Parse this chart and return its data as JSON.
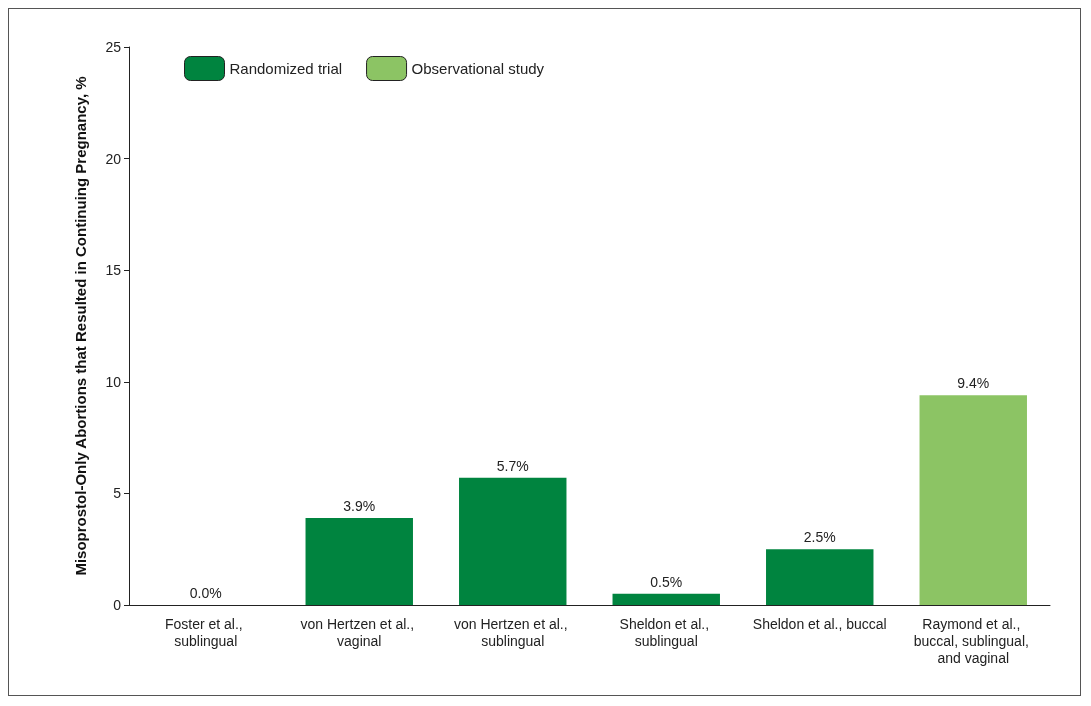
{
  "chart_data": {
    "type": "bar",
    "ylabel": "Misoprostol-Only Abortions that Resulted in Continuing Pregnancy, %",
    "categories": [
      "Foster et al., sublingual",
      "von Hertzen et al., vaginal",
      "von Hertzen et al., sublingual",
      "Sheldon et al., sublingual",
      "Sheldon et al., buccal",
      "Raymond et al., buccal, sublingual, and vaginal"
    ],
    "stacked": true,
    "series": [
      {
        "name": "Randomized trial",
        "color": "#00843f",
        "values": [
          0.0,
          3.9,
          5.7,
          0.5,
          2.5,
          null
        ],
        "value_labels": [
          "0.0%",
          "3.9%",
          "5.7%",
          "0.5%",
          "2.5%",
          null
        ]
      },
      {
        "name": "Observational study",
        "color": "#8cc464",
        "values": [
          null,
          null,
          null,
          null,
          null,
          9.4
        ],
        "value_labels": [
          null,
          null,
          null,
          null,
          null,
          "9.4%"
        ]
      }
    ],
    "ylim": [
      0,
      25
    ],
    "yticks": [
      0,
      5,
      10,
      15,
      20,
      25
    ],
    "grid": false,
    "legend": "top left"
  }
}
